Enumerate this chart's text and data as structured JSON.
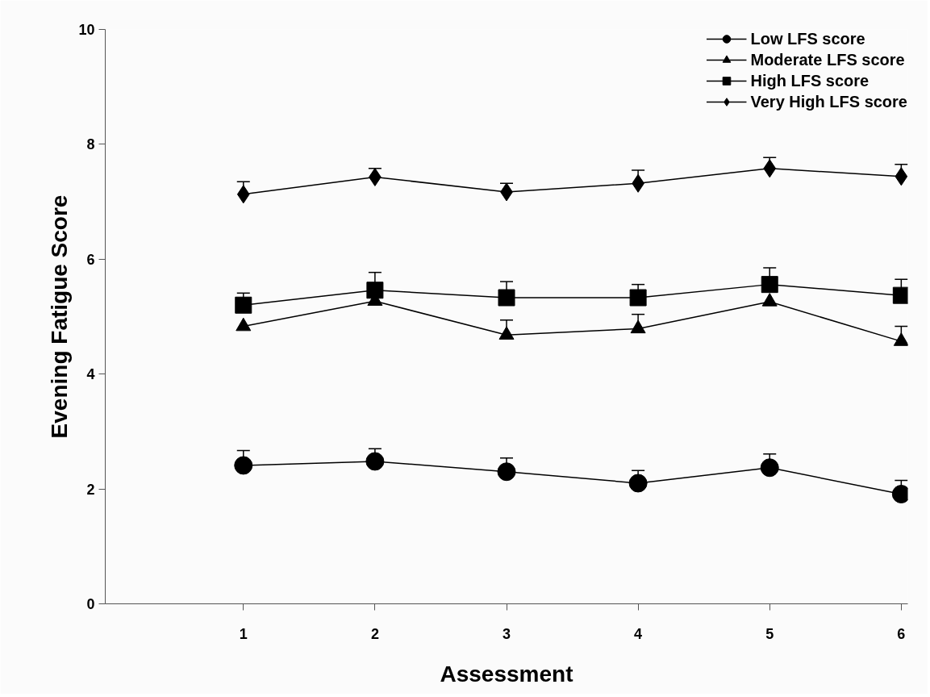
{
  "chart_data": {
    "type": "line",
    "xlabel": "Assessment",
    "ylabel": "Evening Fatigue Score",
    "x": [
      1,
      2,
      3,
      4,
      5,
      6
    ],
    "xlim": [
      -0.05,
      6.05
    ],
    "xticks": [
      1,
      2,
      3,
      4,
      5,
      6
    ],
    "ylim": [
      0,
      10
    ],
    "yticks": [
      0,
      2,
      4,
      6,
      8,
      10
    ],
    "grid": false,
    "legend": "top right",
    "series": [
      {
        "name": "Low LFS score",
        "color": "#000000",
        "marker": "circle",
        "values": [
          2.41,
          2.48,
          2.3,
          2.1,
          2.37,
          1.91
        ],
        "errors": [
          [
            2.41,
            2.67
          ],
          [
            2.48,
            2.7
          ],
          [
            2.3,
            2.54
          ],
          [
            2.1,
            2.32
          ],
          [
            2.37,
            2.61
          ],
          [
            1.91,
            2.15
          ]
        ]
      },
      {
        "name": "Moderate LFS score",
        "color": "#000000",
        "marker": "triangle",
        "values": [
          4.83,
          5.27,
          4.68,
          4.79,
          5.26,
          4.57
        ],
        "errors": [
          null,
          null,
          [
            4.68,
            4.94
          ],
          [
            4.79,
            5.04
          ],
          null,
          [
            4.57,
            4.83
          ]
        ]
      },
      {
        "name": "High LFS score",
        "color": "#000000",
        "marker": "square",
        "values": [
          5.2,
          5.46,
          5.33,
          5.33,
          5.56,
          5.37
        ],
        "errors": [
          [
            5.2,
            5.41
          ],
          [
            5.46,
            5.77
          ],
          [
            5.33,
            5.61
          ],
          [
            5.33,
            5.56
          ],
          [
            5.56,
            5.85
          ],
          [
            5.37,
            5.65
          ]
        ]
      },
      {
        "name": "Very High LFS score",
        "color": "#000000",
        "marker": "diamond",
        "values": [
          7.13,
          7.43,
          7.17,
          7.32,
          7.58,
          7.44
        ],
        "errors": [
          [
            7.13,
            7.35
          ],
          [
            7.43,
            7.58
          ],
          [
            7.17,
            7.32
          ],
          [
            7.32,
            7.55
          ],
          [
            7.58,
            7.77
          ],
          [
            7.44,
            7.65
          ]
        ]
      }
    ]
  }
}
